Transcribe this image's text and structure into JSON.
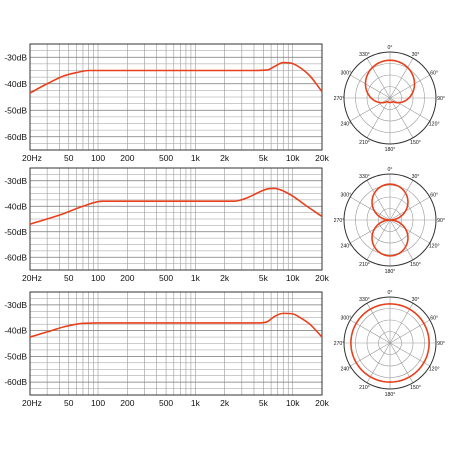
{
  "chart_data": [
    {
      "type": "line",
      "scale_x": "log",
      "xlim": [
        20,
        20000
      ],
      "ylim": [
        -65,
        -25
      ],
      "grid": true,
      "x_ticks": [
        20,
        50,
        100,
        200,
        500,
        1000,
        2000,
        5000,
        10000,
        20000
      ],
      "x_tick_labels": [
        "20Hz",
        "50",
        "100",
        "200",
        "500",
        "1k",
        "2k",
        "5k",
        "10k",
        "20k"
      ],
      "y_ticks": [
        -30,
        -40,
        -50,
        -60
      ],
      "y_tick_labels": [
        "-30dB",
        "-40dB",
        "-50dB",
        "-60dB"
      ],
      "color": "#e8401c",
      "series": [
        {
          "x": [
            20,
            30,
            45,
            60,
            80,
            200,
            1000,
            4000,
            5500,
            6500,
            8000,
            10000,
            12000,
            15000,
            20000
          ],
          "values": [
            -43.5,
            -40,
            -37,
            -35.8,
            -35,
            -35,
            -35,
            -35,
            -34.8,
            -33.5,
            -32,
            -32.4,
            -34,
            -37,
            -43
          ]
        }
      ],
      "polar": {
        "angle_labels": [
          "0°",
          "30°",
          "60°",
          "90°",
          "120°",
          "150°",
          "180°",
          "210°",
          "240°",
          "270°",
          "300°",
          "330°"
        ],
        "pattern": "cardioid",
        "pattern_a": 0.5
      }
    },
    {
      "type": "line",
      "scale_x": "log",
      "xlim": [
        20,
        20000
      ],
      "ylim": [
        -65,
        -25
      ],
      "grid": true,
      "x_ticks": [
        20,
        50,
        100,
        200,
        500,
        1000,
        2000,
        5000,
        10000,
        20000
      ],
      "x_tick_labels": [
        "20Hz",
        "50",
        "100",
        "200",
        "500",
        "1k",
        "2k",
        "5k",
        "10k",
        "20k"
      ],
      "y_ticks": [
        -30,
        -40,
        -50,
        -60
      ],
      "y_tick_labels": [
        "-30dB",
        "-40dB",
        "-50dB",
        "-60dB"
      ],
      "color": "#e8401c",
      "series": [
        {
          "x": [
            20,
            40,
            70,
            110,
            500,
            2500,
            3500,
            4500,
            5500,
            6500,
            8000,
            10000,
            14000,
            20000
          ],
          "values": [
            -47,
            -43.5,
            -40,
            -38,
            -38,
            -38,
            -36.5,
            -34.5,
            -33.2,
            -33,
            -34,
            -36,
            -40,
            -44
          ]
        }
      ],
      "polar": {
        "angle_labels": [
          "0°",
          "30°",
          "60°",
          "90°",
          "120°",
          "150°",
          "180°",
          "210°",
          "240°",
          "270°",
          "300°",
          "330°"
        ],
        "pattern": "figure-eight",
        "pattern_a": 0
      }
    },
    {
      "type": "line",
      "scale_x": "log",
      "xlim": [
        20,
        20000
      ],
      "ylim": [
        -65,
        -25
      ],
      "grid": true,
      "x_ticks": [
        20,
        50,
        100,
        200,
        500,
        1000,
        2000,
        5000,
        10000,
        20000
      ],
      "x_tick_labels": [
        "20Hz",
        "50",
        "100",
        "200",
        "500",
        "1k",
        "2k",
        "5k",
        "10k",
        "20k"
      ],
      "y_ticks": [
        -30,
        -40,
        -50,
        -60
      ],
      "y_tick_labels": [
        "-30dB",
        "-40dB",
        "-50dB",
        "-60dB"
      ],
      "color": "#e8401c",
      "series": [
        {
          "x": [
            20,
            30,
            45,
            65,
            100,
            500,
            2000,
            4500,
            5500,
            6500,
            8000,
            10000,
            12000,
            15000,
            20000
          ],
          "values": [
            -42.5,
            -40.5,
            -38.5,
            -37.3,
            -37,
            -37,
            -37,
            -37,
            -36.5,
            -34.5,
            -33.3,
            -33.5,
            -35,
            -37.5,
            -42.5
          ]
        }
      ],
      "polar": {
        "angle_labels": [
          "0°",
          "30°",
          "60°",
          "90°",
          "120°",
          "150°",
          "180°",
          "210°",
          "240°",
          "270°",
          "300°",
          "330°"
        ],
        "pattern": "omnidirectional",
        "pattern_a": 1
      }
    }
  ]
}
